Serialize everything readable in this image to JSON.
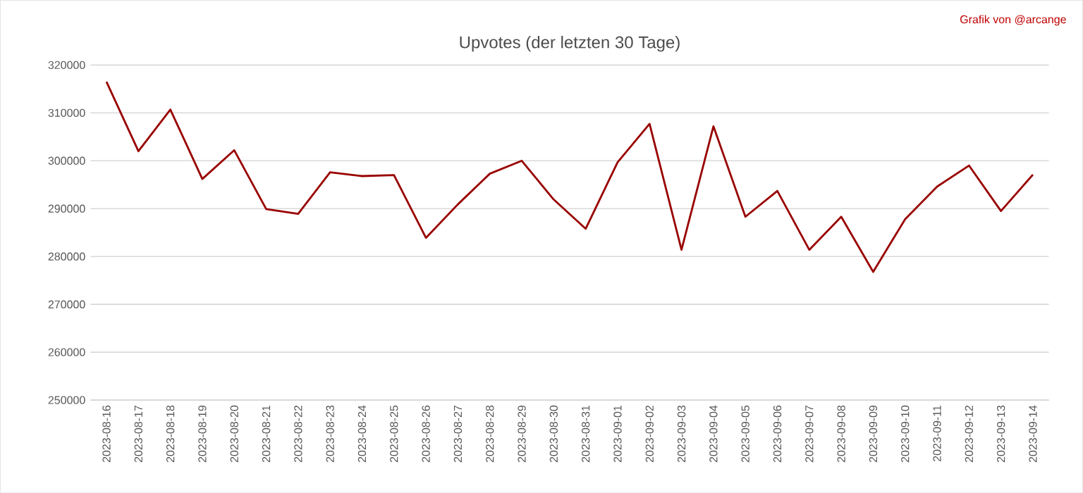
{
  "chart_data": {
    "type": "line",
    "title": "Upvotes (der letzten 30 Tage)",
    "annotations": [
      "Grafik von @arcange"
    ],
    "categories": [
      "2023-08-16",
      "2023-08-17",
      "2023-08-18",
      "2023-08-19",
      "2023-08-20",
      "2023-08-21",
      "2023-08-22",
      "2023-08-23",
      "2023-08-24",
      "2023-08-25",
      "2023-08-26",
      "2023-08-27",
      "2023-08-28",
      "2023-08-29",
      "2023-08-30",
      "2023-08-31",
      "2023-09-01",
      "2023-09-02",
      "2023-09-03",
      "2023-09-04",
      "2023-09-05",
      "2023-09-06",
      "2023-09-07",
      "2023-09-08",
      "2023-09-09",
      "2023-09-10",
      "2023-09-11",
      "2023-09-12",
      "2023-09-13",
      "2023-09-14"
    ],
    "series": [
      {
        "color": "#990000",
        "values": [
          316500,
          302000,
          310700,
          296200,
          302200,
          289900,
          288900,
          297600,
          296800,
          297000,
          283900,
          290900,
          297300,
          300000,
          291900,
          285800,
          299700,
          307700,
          281400,
          307200,
          288300,
          293700,
          281400,
          288300,
          276800,
          287800,
          294600,
          299000,
          289500,
          297100
        ]
      }
    ],
    "ylim": [
      250000,
      320000
    ],
    "yticks": [
      250000,
      260000,
      270000,
      280000,
      290000,
      300000,
      310000,
      320000
    ],
    "grid": "y",
    "legend": false,
    "marker": "none",
    "line_style": "solid"
  }
}
